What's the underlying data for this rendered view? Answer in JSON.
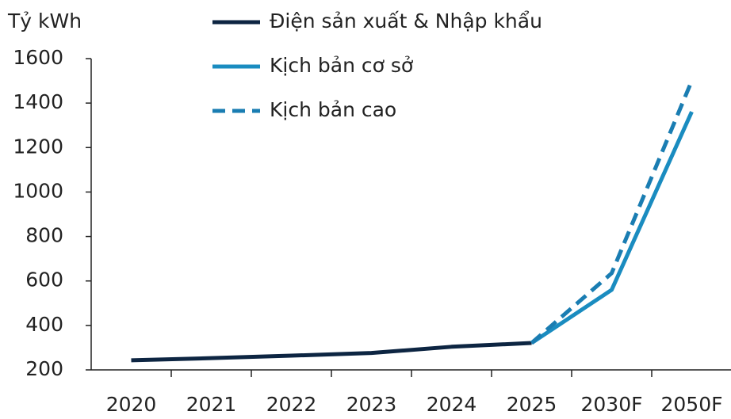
{
  "chart_data": {
    "type": "line",
    "y_label": "Tỷ kWh",
    "categories": [
      "2020",
      "2021",
      "2022",
      "2023",
      "2024",
      "2025",
      "2030F",
      "2050F"
    ],
    "series": [
      {
        "name": "Điện sản xuất & Nhập khẩu",
        "color": "#0d2542",
        "style": "solid",
        "values": [
          243,
          253,
          264,
          276,
          304,
          321,
          null,
          null
        ]
      },
      {
        "name": "Kịch bản cơ sở",
        "color": "#1a8cc0",
        "style": "solid",
        "values": [
          null,
          null,
          null,
          null,
          null,
          321,
          560,
          1361
        ]
      },
      {
        "name": "Kịch bản cao",
        "color": "#1a7db2",
        "style": "dashed",
        "values": [
          null,
          null,
          null,
          null,
          null,
          321,
          635,
          1500
        ]
      }
    ],
    "ylim": [
      200,
      1600
    ],
    "yticks": [
      200,
      400,
      600,
      800,
      1000,
      1200,
      1400,
      1600
    ]
  }
}
